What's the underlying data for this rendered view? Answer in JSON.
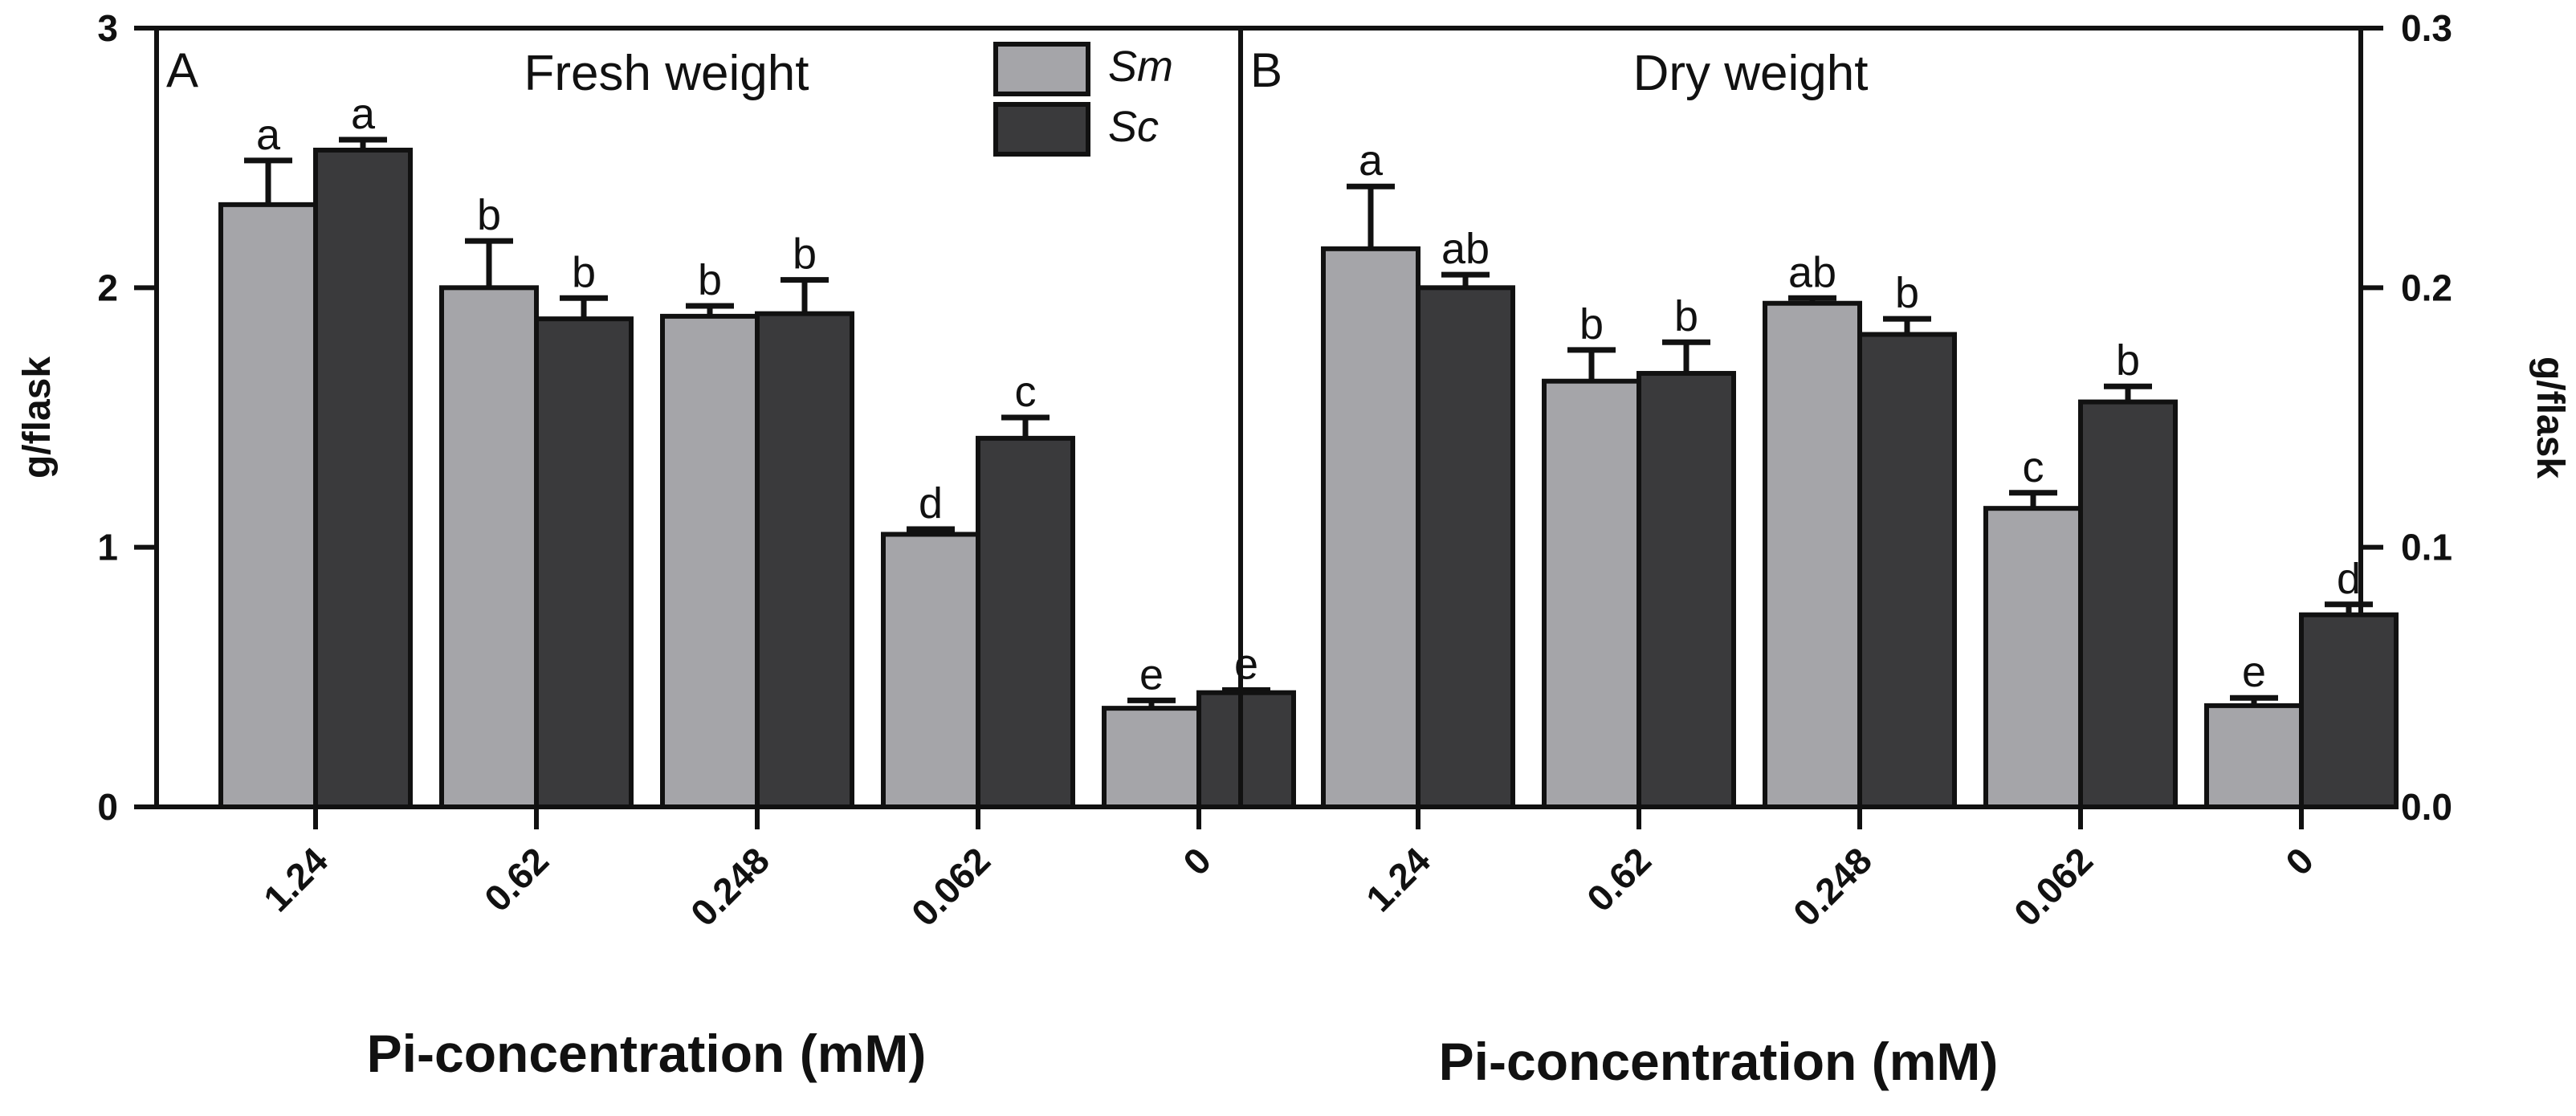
{
  "colors": {
    "sm": "#a5a5a9",
    "sc": "#3a3a3c",
    "axis": "#111111",
    "edge": "#111111"
  },
  "legend": [
    {
      "label": "Sm",
      "color": "#a5a5a9"
    },
    {
      "label": "Sc",
      "color": "#3a3a3c"
    }
  ],
  "chart_data": [
    {
      "type": "bar",
      "panel_label": "A",
      "title": "Fresh weight",
      "xlabel": "Pi-concentration (mM)",
      "ylabel": "g/flask",
      "ylim": [
        0,
        3
      ],
      "yticks": [
        "0",
        "1",
        "2",
        "3"
      ],
      "y_axis_side": "left",
      "categories": [
        "1.24",
        "0.62",
        "0.248",
        "0.062",
        "0"
      ],
      "series": [
        {
          "name": "Sm",
          "values": [
            2.32,
            2.0,
            1.89,
            1.05,
            0.38
          ],
          "errors": [
            0.17,
            0.18,
            0.04,
            0.02,
            0.03
          ],
          "letters": [
            "a",
            "b",
            "b",
            "d",
            "e"
          ]
        },
        {
          "name": "Sc",
          "values": [
            2.53,
            1.88,
            1.9,
            1.42,
            0.44
          ],
          "errors": [
            0.04,
            0.08,
            0.13,
            0.08,
            0.01
          ],
          "letters": [
            "a",
            "b",
            "b",
            "c",
            "e"
          ]
        }
      ]
    },
    {
      "type": "bar",
      "panel_label": "B",
      "title": "Dry weight",
      "xlabel": "Pi-concentration (mM)",
      "ylabel": "g/flask",
      "ylim": [
        0,
        0.3
      ],
      "yticks": [
        "0.0",
        "0.1",
        "0.2",
        "0.3"
      ],
      "y_axis_side": "right",
      "categories": [
        "1.24",
        "0.62",
        "0.248",
        "0.062",
        "0"
      ],
      "series": [
        {
          "name": "Sm",
          "values": [
            0.215,
            0.164,
            0.194,
            0.115,
            0.039
          ],
          "errors": [
            0.024,
            0.012,
            0.002,
            0.006,
            0.003
          ],
          "letters": [
            "a",
            "b",
            "ab",
            "c",
            "e"
          ]
        },
        {
          "name": "Sc",
          "values": [
            0.2,
            0.167,
            0.182,
            0.156,
            0.074
          ],
          "errors": [
            0.005,
            0.012,
            0.006,
            0.006,
            0.004
          ],
          "letters": [
            "ab",
            "b",
            "b",
            "b",
            "d"
          ]
        }
      ]
    }
  ]
}
